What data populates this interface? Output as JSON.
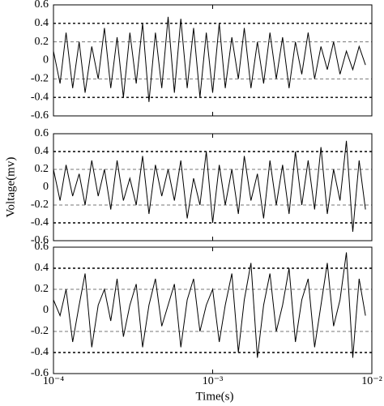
{
  "chart_data": [
    {
      "type": "line",
      "color": "#000000",
      "log_x": true,
      "grid": true,
      "x": [
        0.0001,
        0.00011,
        0.00012,
        0.000132,
        0.000145,
        0.000158,
        0.000174,
        0.000191,
        0.000209,
        0.000229,
        0.000251,
        0.000275,
        0.000302,
        0.000331,
        0.000363,
        0.000398,
        0.000437,
        0.000479,
        0.000525,
        0.000575,
        0.000631,
        0.000692,
        0.000759,
        0.000832,
        0.000912,
        0.001,
        0.0011,
        0.0012,
        0.00132,
        0.00145,
        0.00158,
        0.00174,
        0.00191,
        0.00209,
        0.00229,
        0.00251,
        0.00275,
        0.00302,
        0.00331,
        0.00363,
        0.00398,
        0.00437,
        0.00479,
        0.00525,
        0.00575,
        0.00631,
        0.00692,
        0.00759,
        0.00832,
        0.00912
      ],
      "values": [
        0.1,
        -0.25,
        0.3,
        -0.3,
        0.2,
        -0.35,
        0.15,
        -0.2,
        0.35,
        -0.3,
        0.25,
        -0.4,
        0.3,
        -0.25,
        0.4,
        -0.45,
        0.3,
        -0.3,
        0.47,
        -0.35,
        0.45,
        -0.3,
        0.35,
        -0.4,
        0.3,
        -0.35,
        0.4,
        -0.3,
        0.25,
        -0.2,
        0.35,
        -0.3,
        0.2,
        -0.25,
        0.3,
        -0.2,
        0.25,
        -0.3,
        0.2,
        -0.15,
        0.3,
        -0.2,
        0.15,
        -0.1,
        0.2,
        -0.15,
        0.1,
        -0.1,
        0.15,
        -0.05
      ],
      "xlim": [
        0.0001,
        0.01
      ],
      "xticks": [
        0.0001,
        0.001,
        0.01
      ],
      "ylim": [
        -0.6,
        0.6
      ],
      "yticks": [
        -0.6,
        -0.4,
        -0.2,
        0,
        0.2,
        0.4,
        0.6
      ]
    },
    {
      "type": "line",
      "color": "#000000",
      "log_x": true,
      "grid": true,
      "ylabel": "Voltage(mv)",
      "x": [
        0.0001,
        0.00011,
        0.00012,
        0.000132,
        0.000145,
        0.000158,
        0.000174,
        0.000191,
        0.000209,
        0.000229,
        0.000251,
        0.000275,
        0.000302,
        0.000331,
        0.000363,
        0.000398,
        0.000437,
        0.000479,
        0.000525,
        0.000575,
        0.000631,
        0.000692,
        0.000759,
        0.000832,
        0.000912,
        0.001,
        0.0011,
        0.0012,
        0.00132,
        0.00145,
        0.00158,
        0.00174,
        0.00191,
        0.00209,
        0.00229,
        0.00251,
        0.00275,
        0.00302,
        0.00331,
        0.00363,
        0.00398,
        0.00437,
        0.00479,
        0.00525,
        0.00575,
        0.00631,
        0.00692,
        0.00759,
        0.00832,
        0.00912
      ],
      "values": [
        0.2,
        -0.15,
        0.25,
        -0.1,
        0.15,
        -0.2,
        0.3,
        -0.1,
        0.2,
        -0.25,
        0.3,
        -0.15,
        0.1,
        -0.2,
        0.35,
        -0.3,
        0.25,
        -0.1,
        0.2,
        -0.15,
        0.3,
        -0.35,
        0.1,
        -0.2,
        0.4,
        -0.4,
        0.25,
        -0.2,
        0.2,
        -0.3,
        0.35,
        -0.15,
        0.15,
        -0.35,
        0.3,
        -0.2,
        0.25,
        -0.3,
        0.4,
        -0.2,
        0.3,
        -0.25,
        0.45,
        -0.3,
        0.2,
        -0.15,
        0.52,
        -0.5,
        0.3,
        -0.25
      ],
      "xlim": [
        0.0001,
        0.01
      ],
      "xticks": [
        0.0001,
        0.001,
        0.01
      ],
      "ylim": [
        -0.6,
        0.6
      ],
      "yticks": [
        -0.6,
        -0.4,
        -0.2,
        0,
        0.2,
        0.4,
        0.6
      ]
    },
    {
      "type": "line",
      "color": "#000000",
      "log_x": true,
      "grid": true,
      "xlabel": "Time(s)",
      "x": [
        0.0001,
        0.00011,
        0.00012,
        0.000132,
        0.000145,
        0.000158,
        0.000174,
        0.000191,
        0.000209,
        0.000229,
        0.000251,
        0.000275,
        0.000302,
        0.000331,
        0.000363,
        0.000398,
        0.000437,
        0.000479,
        0.000525,
        0.000575,
        0.000631,
        0.000692,
        0.000759,
        0.000832,
        0.000912,
        0.001,
        0.0011,
        0.0012,
        0.00132,
        0.00145,
        0.00158,
        0.00174,
        0.00191,
        0.00209,
        0.00229,
        0.00251,
        0.00275,
        0.00302,
        0.00331,
        0.00363,
        0.00398,
        0.00437,
        0.00479,
        0.00525,
        0.00575,
        0.00631,
        0.00692,
        0.00759,
        0.00832,
        0.00912
      ],
      "values": [
        0.1,
        -0.05,
        0.2,
        -0.3,
        0.05,
        0.35,
        -0.35,
        0.05,
        0.2,
        -0.1,
        0.3,
        -0.25,
        0.05,
        0.25,
        -0.35,
        0.05,
        0.3,
        -0.15,
        0.05,
        0.25,
        -0.35,
        0.1,
        0.3,
        -0.2,
        0.05,
        0.2,
        -0.3,
        0.05,
        0.35,
        -0.4,
        0.1,
        0.45,
        -0.45,
        0.05,
        0.35,
        -0.2,
        0.05,
        0.4,
        -0.3,
        0.1,
        0.3,
        -0.35,
        0.05,
        0.45,
        -0.15,
        0.1,
        0.55,
        -0.45,
        0.3,
        -0.05
      ],
      "xlim": [
        0.0001,
        0.01
      ],
      "xticks": [
        {
          "value": 0.0001,
          "label": "10⁻⁴"
        },
        {
          "value": 0.001,
          "label": "10⁻³"
        },
        {
          "value": 0.01,
          "label": "10⁻²"
        }
      ],
      "ylim": [
        -0.6,
        0.6
      ],
      "yticks": [
        -0.6,
        -0.4,
        -0.2,
        0,
        0.2,
        0.4,
        0.6
      ]
    }
  ]
}
